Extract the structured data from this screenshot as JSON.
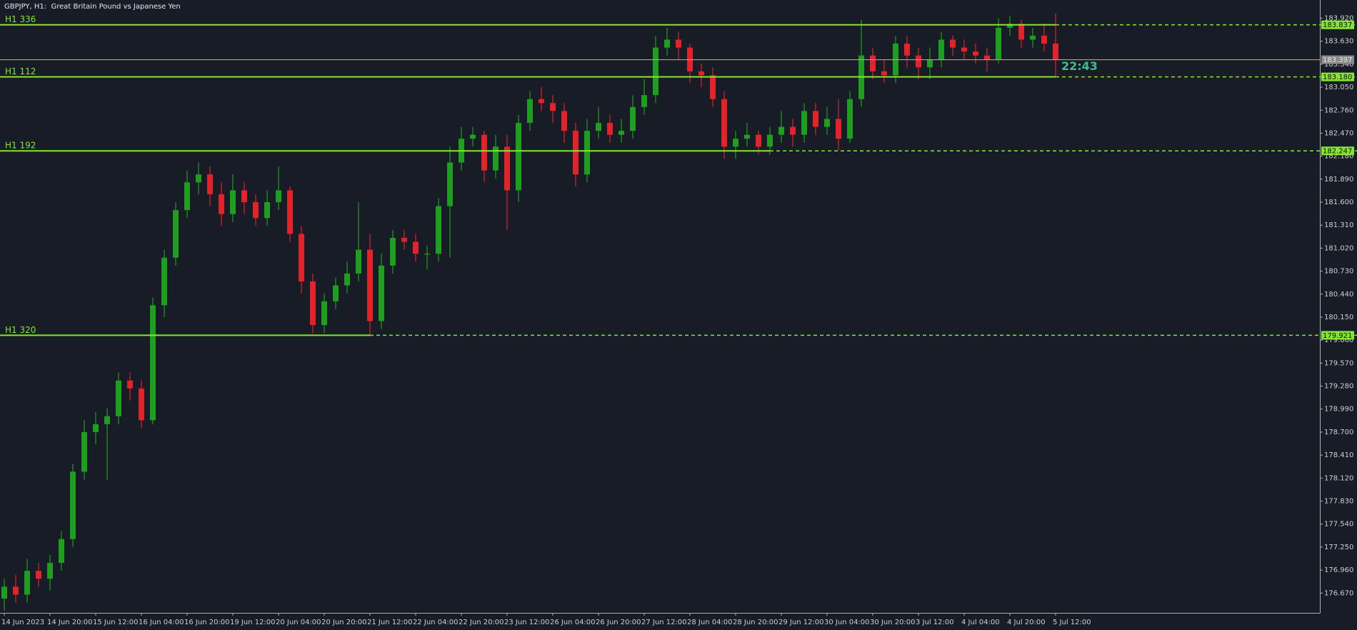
{
  "chart_data": {
    "type": "candlestick",
    "title": "GBPJPY, H1:  Great Britain Pound vs Japanese Yen",
    "categories": [
      "14 Jun 2023",
      null,
      null,
      null,
      "14 Jun 20:00",
      null,
      null,
      null,
      "15 Jun 12:00",
      null,
      null,
      null,
      "16 Jun 04:00",
      null,
      null,
      null,
      "16 Jun 20:00",
      null,
      null,
      null,
      "19 Jun 12:00",
      null,
      null,
      null,
      "20 Jun 04:00",
      null,
      null,
      null,
      "20 Jun 20:00",
      null,
      null,
      null,
      "21 Jun 12:00",
      null,
      null,
      null,
      "22 Jun 04:00",
      null,
      null,
      null,
      "22 Jun 20:00",
      null,
      null,
      null,
      "23 Jun 12:00",
      null,
      null,
      null,
      "26 Jun 04:00",
      null,
      null,
      null,
      "26 Jun 20:00",
      null,
      null,
      null,
      "27 Jun 12:00",
      null,
      null,
      null,
      "28 Jun 04:00",
      null,
      null,
      null,
      "28 Jun 20:00",
      null,
      null,
      null,
      "29 Jun 12:00",
      null,
      null,
      null,
      "30 Jun 04:00",
      null,
      null,
      null,
      "30 Jun 20:00",
      null,
      null,
      null,
      "3 Jul 12:00",
      null,
      null,
      null,
      "4 Jul 04:00",
      null,
      null,
      null,
      "4 Jul 20:00",
      null,
      null,
      null,
      "5 Jul 12:00"
    ],
    "open": [
      176.6,
      176.75,
      176.65,
      176.95,
      176.85,
      177.05,
      177.35,
      178.2,
      178.7,
      178.8,
      178.9,
      179.35,
      179.25,
      178.85,
      180.3,
      180.9,
      181.5,
      181.85,
      181.95,
      181.7,
      181.45,
      181.75,
      181.6,
      181.4,
      181.6,
      181.75,
      181.2,
      180.6,
      180.05,
      180.35,
      180.55,
      180.7,
      181.0,
      180.1,
      180.8,
      181.15,
      181.1,
      180.95,
      180.95,
      181.55,
      182.1,
      182.4,
      182.45,
      182.0,
      182.3,
      181.75,
      182.6,
      182.9,
      182.85,
      182.75,
      182.5,
      181.95,
      182.5,
      182.6,
      182.45,
      182.5,
      182.8,
      182.95,
      183.55,
      183.65,
      183.55,
      183.25,
      183.2,
      182.9,
      182.3,
      182.4,
      182.45,
      182.3,
      182.45,
      182.55,
      182.45,
      182.75,
      182.55,
      182.65,
      182.4,
      182.9,
      183.45,
      183.25,
      183.2,
      183.6,
      183.45,
      183.3,
      183.4,
      183.65,
      183.55,
      183.5,
      183.45,
      183.4,
      183.8,
      183.85,
      183.65,
      183.7,
      183.6
    ],
    "high": [
      176.85,
      176.9,
      177.1,
      177.05,
      177.15,
      177.45,
      178.3,
      178.85,
      178.95,
      179.0,
      179.45,
      179.45,
      179.35,
      180.4,
      181.0,
      181.6,
      182.0,
      182.1,
      182.05,
      181.85,
      181.95,
      181.85,
      181.7,
      181.75,
      182.05,
      181.8,
      181.3,
      180.7,
      180.45,
      180.65,
      180.85,
      181.6,
      181.2,
      180.95,
      181.25,
      181.25,
      181.2,
      181.05,
      181.65,
      182.3,
      182.55,
      182.55,
      182.5,
      182.45,
      182.45,
      182.7,
      183.0,
      183.05,
      182.95,
      182.85,
      182.6,
      182.65,
      182.8,
      182.7,
      182.65,
      182.95,
      183.15,
      183.7,
      183.8,
      183.75,
      183.6,
      183.35,
      183.3,
      183.0,
      182.5,
      182.6,
      182.5,
      182.55,
      182.75,
      182.65,
      182.85,
      182.85,
      182.8,
      182.9,
      183.0,
      183.9,
      183.55,
      183.4,
      183.7,
      183.7,
      183.55,
      183.55,
      183.75,
      183.7,
      183.65,
      183.6,
      183.55,
      183.92,
      183.95,
      183.9,
      183.8,
      183.85,
      183.98
    ],
    "low": [
      176.45,
      176.55,
      176.55,
      176.75,
      176.7,
      176.95,
      177.25,
      178.1,
      178.55,
      178.1,
      178.8,
      179.1,
      178.75,
      178.8,
      180.15,
      180.8,
      181.4,
      181.7,
      181.55,
      181.3,
      181.35,
      181.45,
      181.3,
      181.3,
      181.5,
      181.1,
      180.45,
      179.95,
      179.95,
      180.25,
      180.45,
      180.6,
      179.92,
      180.0,
      180.7,
      181.0,
      180.85,
      180.75,
      180.85,
      180.9,
      182.0,
      182.3,
      181.85,
      181.9,
      181.25,
      181.6,
      182.5,
      182.75,
      182.6,
      182.35,
      181.8,
      181.85,
      182.4,
      182.35,
      182.35,
      182.4,
      182.7,
      182.85,
      183.45,
      183.4,
      183.1,
      183.05,
      182.8,
      182.15,
      182.15,
      182.3,
      182.2,
      182.2,
      182.35,
      182.3,
      182.35,
      182.45,
      182.45,
      182.25,
      182.35,
      182.8,
      183.15,
      183.1,
      183.1,
      183.3,
      183.15,
      183.15,
      183.3,
      183.45,
      183.4,
      183.35,
      183.25,
      183.35,
      183.7,
      183.55,
      183.55,
      183.5,
      183.18
    ],
    "close": [
      176.75,
      176.65,
      176.95,
      176.85,
      177.05,
      177.35,
      178.2,
      178.7,
      178.8,
      178.9,
      179.35,
      179.25,
      178.85,
      180.3,
      180.9,
      181.5,
      181.85,
      181.95,
      181.7,
      181.45,
      181.75,
      181.6,
      181.4,
      181.6,
      181.75,
      181.2,
      180.6,
      180.05,
      180.35,
      180.55,
      180.7,
      181.0,
      180.1,
      180.8,
      181.15,
      181.1,
      180.95,
      180.95,
      181.55,
      182.1,
      182.4,
      182.45,
      182.0,
      182.3,
      181.75,
      182.6,
      182.9,
      182.85,
      182.75,
      182.5,
      181.95,
      182.5,
      182.6,
      182.45,
      182.5,
      182.8,
      182.95,
      183.55,
      183.65,
      183.55,
      183.25,
      183.2,
      182.9,
      182.3,
      182.4,
      182.45,
      182.3,
      182.45,
      182.55,
      182.45,
      182.75,
      182.55,
      182.65,
      182.4,
      182.9,
      183.45,
      183.25,
      183.2,
      183.6,
      183.45,
      183.3,
      183.4,
      183.65,
      183.55,
      183.5,
      183.45,
      183.4,
      183.8,
      183.85,
      183.65,
      183.7,
      183.6,
      183.4
    ],
    "ylim": [
      176.42,
      184.15
    ],
    "yticks": [
      {
        "value": 183.92,
        "label": "183.920"
      },
      {
        "value": 183.63,
        "label": "183.630"
      },
      {
        "value": 183.34,
        "label": "183.340"
      },
      {
        "value": 183.05,
        "label": "183.050"
      },
      {
        "value": 182.76,
        "label": "182.760"
      },
      {
        "value": 182.47,
        "label": "182.470"
      },
      {
        "value": 182.18,
        "label": "182.180"
      },
      {
        "value": 181.89,
        "label": "181.890"
      },
      {
        "value": 181.6,
        "label": "181.600"
      },
      {
        "value": 181.31,
        "label": "181.310"
      },
      {
        "value": 181.02,
        "label": "181.020"
      },
      {
        "value": 180.73,
        "label": "180.730"
      },
      {
        "value": 180.44,
        "label": "180.440"
      },
      {
        "value": 180.15,
        "label": "180.150"
      },
      {
        "value": 179.86,
        "label": "179.860"
      },
      {
        "value": 179.57,
        "label": "179.570"
      },
      {
        "value": 179.28,
        "label": "179.280"
      },
      {
        "value": 178.99,
        "label": "178.990"
      },
      {
        "value": 178.7,
        "label": "178.700"
      },
      {
        "value": 178.41,
        "label": "178.410"
      },
      {
        "value": 178.12,
        "label": "178.120"
      },
      {
        "value": 177.83,
        "label": "177.830"
      },
      {
        "value": 177.54,
        "label": "177.540"
      },
      {
        "value": 177.25,
        "label": "177.250"
      },
      {
        "value": 176.96,
        "label": "176.960"
      },
      {
        "value": 176.67,
        "label": "176.670"
      }
    ],
    "levels": [
      {
        "name": "H1 336",
        "value": 183.837,
        "label": "183.837"
      },
      {
        "name": "H1 112",
        "value": 183.18,
        "label": "183.180"
      },
      {
        "name": "H1 192",
        "value": 182.247,
        "label": "182.247"
      },
      {
        "name": "H1 320",
        "value": 179.921,
        "label": "179.921"
      }
    ],
    "current_price": {
      "value": 183.397,
      "label": "183.397"
    },
    "countdown": "22:43",
    "up_color": "#1f9e1f",
    "down_color": "#e0242a",
    "level_color": "#84e631",
    "price_color": "#d98c8c"
  }
}
